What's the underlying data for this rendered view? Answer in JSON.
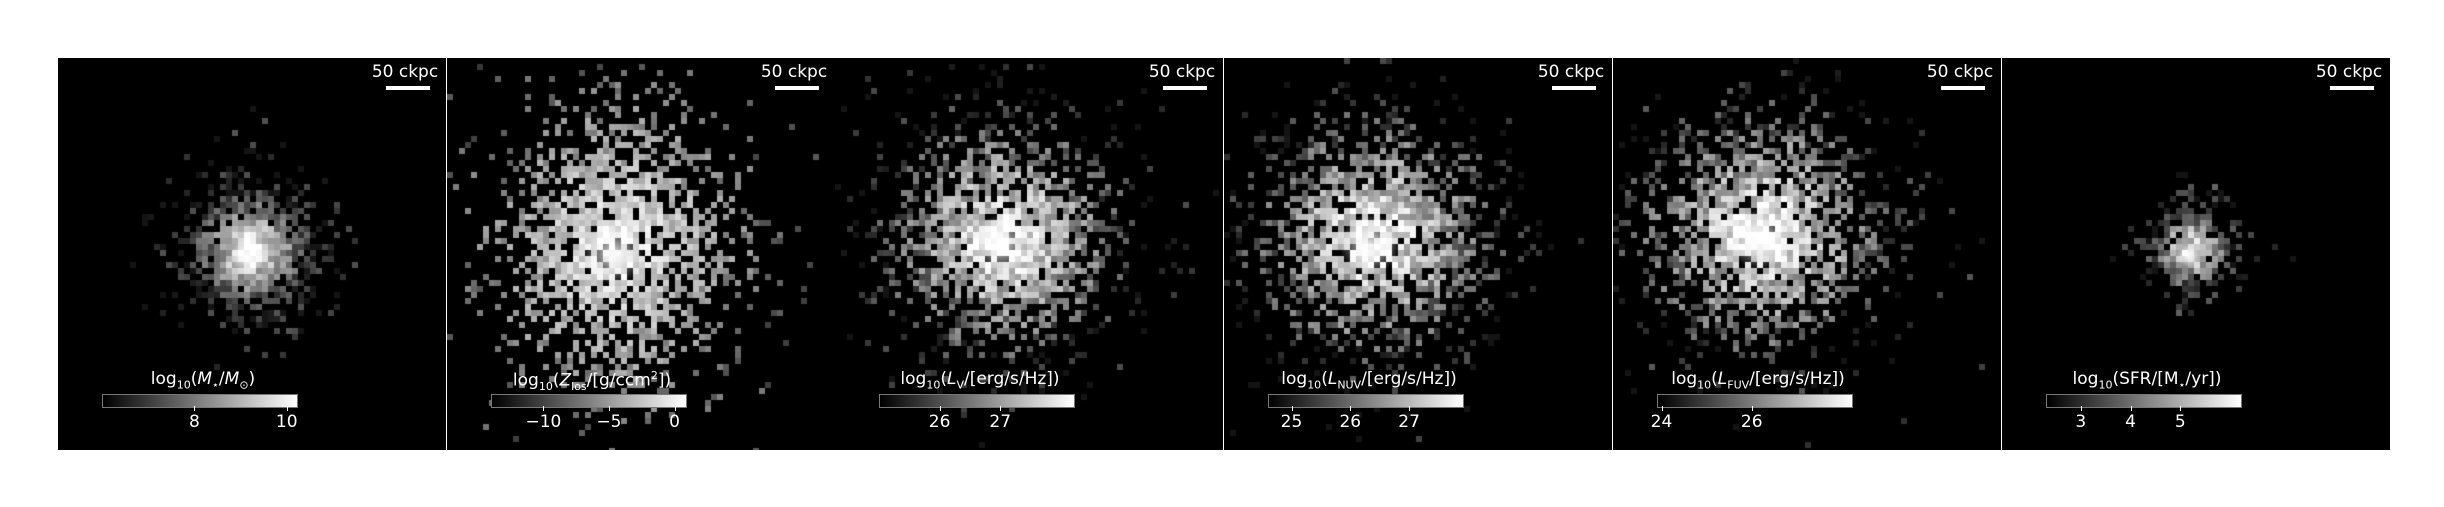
{
  "panels": [
    {
      "scale_label": "50 ckpc",
      "colorbar_label": "log₁₀(M⋆/M⊙)",
      "ticks": [
        {
          "value": 8,
          "label": "8"
        },
        {
          "value": 10,
          "label": "10"
        }
      ],
      "range": [
        6,
        10.2
      ]
    },
    {
      "scale_label": "50 ckpc",
      "colorbar_label": "log₁₀(Zlos/[g/ccm²])",
      "ticks": [
        {
          "value": -10,
          "label": "−10"
        },
        {
          "value": -5,
          "label": "−5"
        },
        {
          "value": 0,
          "label": "0"
        }
      ],
      "range": [
        -14,
        0.8
      ]
    },
    {
      "scale_label": "50 ckpc",
      "colorbar_label": "log₁₀(LV/[erg/s/Hz])",
      "ticks": [
        {
          "value": 26,
          "label": "26"
        },
        {
          "value": 27,
          "label": "27"
        }
      ],
      "range": [
        25.0,
        28.2
      ]
    },
    {
      "scale_label": "50 ckpc",
      "colorbar_label": "log₁₀(LNUV/[erg/s/Hz])",
      "ticks": [
        {
          "value": 25,
          "label": "25"
        },
        {
          "value": 26,
          "label": "26"
        },
        {
          "value": 27,
          "label": "27"
        }
      ],
      "range": [
        24.6,
        27.9
      ]
    },
    {
      "scale_label": "50 ckpc",
      "colorbar_label": "log₁₀(LFUV/[erg/s/Hz])",
      "ticks": [
        {
          "value": 24,
          "label": "24"
        },
        {
          "value": 26,
          "label": "26"
        }
      ],
      "range": [
        23.9,
        28.2
      ]
    },
    {
      "scale_label": "50 ckpc",
      "colorbar_label": "log₁₀(SFR/[M⋆/yr])",
      "ticks": [
        {
          "value": 3,
          "label": "3"
        },
        {
          "value": 4,
          "label": "4"
        },
        {
          "value": 5,
          "label": "5"
        }
      ],
      "range": [
        2.3,
        6.2
      ]
    }
  ]
}
